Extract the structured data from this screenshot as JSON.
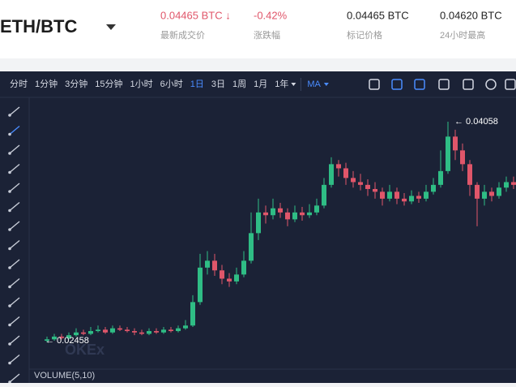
{
  "header": {
    "pair": "ETH/BTC",
    "stats": [
      {
        "value": "0.04465 BTC ↓",
        "label": "最新成交价",
        "color": "#e0566a"
      },
      {
        "value": "-0.42%",
        "label": "涨跌幅",
        "color": "#e0566a"
      },
      {
        "value": "0.04465 BTC",
        "label": "标记价格",
        "color": "#222222"
      },
      {
        "value": "0.04620 BTC",
        "label": "24小时最高",
        "color": "#222222"
      }
    ]
  },
  "toolbar": {
    "intervals": [
      {
        "label": "分时",
        "active": false
      },
      {
        "label": "1分钟",
        "active": false
      },
      {
        "label": "3分钟",
        "active": false
      },
      {
        "label": "15分钟",
        "active": false
      },
      {
        "label": "1小时",
        "active": false
      },
      {
        "label": "6小时",
        "active": false
      },
      {
        "label": "1日",
        "active": true
      },
      {
        "label": "3日",
        "active": false
      },
      {
        "label": "1周",
        "active": false
      },
      {
        "label": "1月",
        "active": false
      },
      {
        "label": "1年",
        "active": false
      }
    ],
    "indicator": "MA"
  },
  "chart_data": {
    "type": "candlestick",
    "up_color": "#2fbd85",
    "down_color": "#e0566a",
    "high_label": "← 0.04058",
    "low_label": "← 0.02458",
    "high_index": 55,
    "low_index": 0,
    "watermark": "OKEx",
    "volume_label": "VOLUME(5,10)",
    "candles": [
      [
        0.0247,
        0.025,
        0.02458,
        0.0248
      ],
      [
        0.0248,
        0.0252,
        0.0247,
        0.025
      ],
      [
        0.025,
        0.0252,
        0.0248,
        0.0249
      ],
      [
        0.0249,
        0.0253,
        0.0248,
        0.0251
      ],
      [
        0.0251,
        0.0256,
        0.025,
        0.0253
      ],
      [
        0.0253,
        0.0255,
        0.0251,
        0.0252
      ],
      [
        0.0252,
        0.0257,
        0.0251,
        0.0254
      ],
      [
        0.0254,
        0.0258,
        0.0253,
        0.0255
      ],
      [
        0.0255,
        0.0257,
        0.0252,
        0.0253
      ],
      [
        0.0253,
        0.0258,
        0.0252,
        0.0256
      ],
      [
        0.0256,
        0.0258,
        0.0254,
        0.0255
      ],
      [
        0.0255,
        0.0257,
        0.0253,
        0.0254
      ],
      [
        0.0254,
        0.0256,
        0.0251,
        0.0253
      ],
      [
        0.0253,
        0.0255,
        0.0251,
        0.0252
      ],
      [
        0.0252,
        0.0256,
        0.0251,
        0.0254
      ],
      [
        0.0254,
        0.0256,
        0.0252,
        0.0253
      ],
      [
        0.0253,
        0.0257,
        0.0252,
        0.0255
      ],
      [
        0.0255,
        0.0257,
        0.0253,
        0.0254
      ],
      [
        0.0254,
        0.0258,
        0.0253,
        0.0256
      ],
      [
        0.0256,
        0.0262,
        0.0255,
        0.0258
      ],
      [
        0.0258,
        0.028,
        0.0257,
        0.0275
      ],
      [
        0.0275,
        0.031,
        0.0273,
        0.03
      ],
      [
        0.03,
        0.0312,
        0.0295,
        0.0305
      ],
      [
        0.0305,
        0.031,
        0.0294,
        0.0298
      ],
      [
        0.0298,
        0.0302,
        0.0288,
        0.0292
      ],
      [
        0.0292,
        0.0296,
        0.0286,
        0.029
      ],
      [
        0.029,
        0.03,
        0.0288,
        0.0295
      ],
      [
        0.0295,
        0.0312,
        0.0293,
        0.0305
      ],
      [
        0.0305,
        0.034,
        0.0303,
        0.0325
      ],
      [
        0.0325,
        0.035,
        0.032,
        0.034
      ],
      [
        0.034,
        0.0345,
        0.0332,
        0.0338
      ],
      [
        0.0338,
        0.035,
        0.0335,
        0.0343
      ],
      [
        0.0343,
        0.0347,
        0.0336,
        0.034
      ],
      [
        0.034,
        0.0343,
        0.033,
        0.0335
      ],
      [
        0.0335,
        0.0345,
        0.0333,
        0.034
      ],
      [
        0.034,
        0.0344,
        0.0334,
        0.0338
      ],
      [
        0.0338,
        0.0346,
        0.0336,
        0.034
      ],
      [
        0.034,
        0.035,
        0.0338,
        0.0345
      ],
      [
        0.0345,
        0.0365,
        0.0343,
        0.036
      ],
      [
        0.036,
        0.038,
        0.0358,
        0.0375
      ],
      [
        0.0375,
        0.0378,
        0.0366,
        0.0372
      ],
      [
        0.0372,
        0.0376,
        0.036,
        0.0365
      ],
      [
        0.0365,
        0.037,
        0.0358,
        0.0362
      ],
      [
        0.0362,
        0.0368,
        0.0356,
        0.036
      ],
      [
        0.036,
        0.0364,
        0.0352,
        0.0357
      ],
      [
        0.0357,
        0.0362,
        0.035,
        0.0355
      ],
      [
        0.0355,
        0.0358,
        0.0345,
        0.035
      ],
      [
        0.035,
        0.036,
        0.0348,
        0.0355
      ],
      [
        0.0355,
        0.0358,
        0.0346,
        0.035
      ],
      [
        0.035,
        0.0354,
        0.0345,
        0.0348
      ],
      [
        0.0348,
        0.0356,
        0.0346,
        0.0352
      ],
      [
        0.0352,
        0.0355,
        0.0347,
        0.035
      ],
      [
        0.035,
        0.036,
        0.0348,
        0.0355
      ],
      [
        0.0355,
        0.0365,
        0.0353,
        0.036
      ],
      [
        0.036,
        0.0385,
        0.0358,
        0.037
      ],
      [
        0.037,
        0.04058,
        0.0368,
        0.0395
      ],
      [
        0.0395,
        0.04,
        0.0378,
        0.0385
      ],
      [
        0.0385,
        0.039,
        0.037,
        0.0375
      ],
      [
        0.0375,
        0.0378,
        0.0352,
        0.036
      ],
      [
        0.036,
        0.0362,
        0.033,
        0.035
      ],
      [
        0.035,
        0.036,
        0.0345,
        0.0355
      ],
      [
        0.0355,
        0.0358,
        0.0348,
        0.0352
      ],
      [
        0.0352,
        0.0362,
        0.035,
        0.0358
      ],
      [
        0.0358,
        0.0366,
        0.0355,
        0.0362
      ],
      [
        0.0362,
        0.0366,
        0.0357,
        0.036
      ]
    ]
  }
}
